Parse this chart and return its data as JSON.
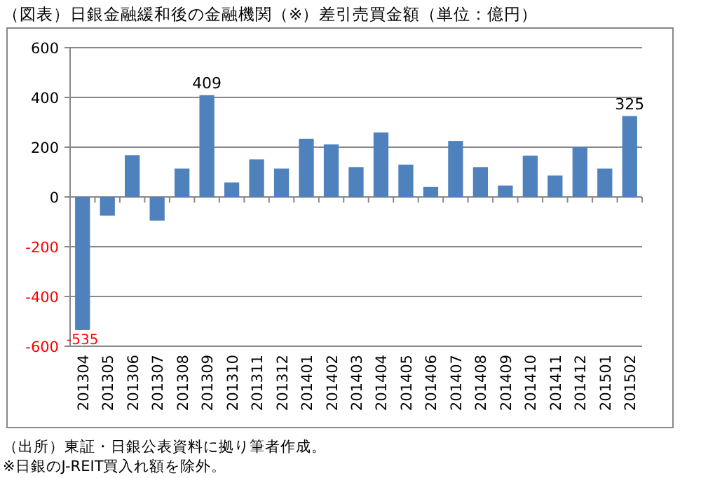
{
  "chart_data": {
    "type": "bar",
    "title": "（図表）日銀金融緩和後の金融機関（※）差引売買金額（単位：億円）",
    "categories": [
      "201304",
      "201305",
      "201306",
      "201307",
      "201308",
      "201309",
      "201310",
      "201311",
      "201312",
      "201401",
      "201402",
      "201403",
      "201404",
      "201405",
      "201406",
      "201407",
      "201408",
      "201409",
      "201410",
      "201411",
      "201412",
      "201501",
      "201502"
    ],
    "values": [
      -535,
      -75,
      168,
      -95,
      114,
      409,
      58,
      151,
      114,
      234,
      211,
      120,
      259,
      130,
      40,
      225,
      120,
      46,
      166,
      86,
      200,
      114,
      325
    ],
    "value_labels": [
      "-535",
      null,
      null,
      null,
      null,
      "409",
      null,
      null,
      null,
      null,
      null,
      null,
      null,
      null,
      null,
      null,
      null,
      null,
      null,
      null,
      null,
      null,
      "325"
    ],
    "color": "#4f81bd",
    "ylim": [
      -600,
      600
    ],
    "yticks": [
      -600,
      -400,
      -200,
      0,
      200,
      400,
      600
    ],
    "grid": "y",
    "annotations": [
      "（出所）東証・日銀公表資料に拠り筆者作成。",
      "※日銀のJ-REIT買入れ額を除外。"
    ]
  }
}
